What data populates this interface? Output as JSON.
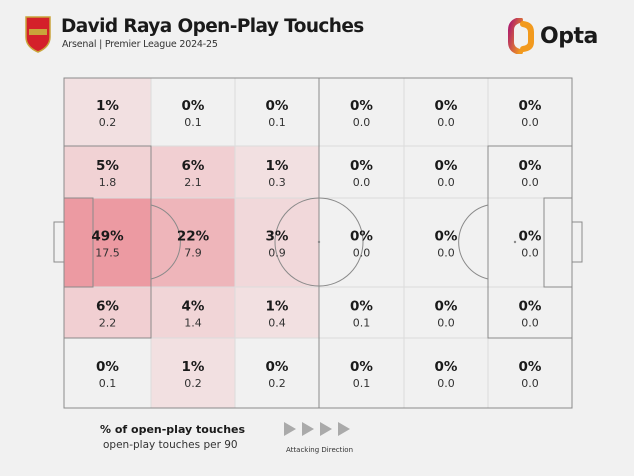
{
  "header": {
    "title": "David Raya Open-Play Touches",
    "subtitle": "Arsenal | Premier League 2024-25",
    "crest_text": "Arsenal",
    "brand": "Opta"
  },
  "colors": {
    "background": "#f1f1f1",
    "heat_max": "#ec9aa2",
    "heat_min": "#f3ecec",
    "lines": "#888888"
  },
  "chart_data": {
    "type": "heatmap",
    "title": "David Raya Open-Play Touches",
    "grid": "6 columns x 5 rows over pitch",
    "rows": [
      [
        {
          "pct": "1%",
          "per90": "0.2"
        },
        {
          "pct": "0%",
          "per90": "0.1"
        },
        {
          "pct": "0%",
          "per90": "0.1"
        },
        {
          "pct": "0%",
          "per90": "0.0"
        },
        {
          "pct": "0%",
          "per90": "0.0"
        },
        {
          "pct": "0%",
          "per90": "0.0"
        }
      ],
      [
        {
          "pct": "5%",
          "per90": "1.8"
        },
        {
          "pct": "6%",
          "per90": "2.1"
        },
        {
          "pct": "1%",
          "per90": "0.3"
        },
        {
          "pct": "0%",
          "per90": "0.0"
        },
        {
          "pct": "0%",
          "per90": "0.0"
        },
        {
          "pct": "0%",
          "per90": "0.0"
        }
      ],
      [
        {
          "pct": "49%",
          "per90": "17.5"
        },
        {
          "pct": "22%",
          "per90": "7.9"
        },
        {
          "pct": "3%",
          "per90": "0.9"
        },
        {
          "pct": "0%",
          "per90": "0.0"
        },
        {
          "pct": "0%",
          "per90": "0.0"
        },
        {
          "pct": "0%",
          "per90": "0.0"
        }
      ],
      [
        {
          "pct": "6%",
          "per90": "2.2"
        },
        {
          "pct": "4%",
          "per90": "1.4"
        },
        {
          "pct": "1%",
          "per90": "0.4"
        },
        {
          "pct": "0%",
          "per90": "0.1"
        },
        {
          "pct": "0%",
          "per90": "0.0"
        },
        {
          "pct": "0%",
          "per90": "0.0"
        }
      ],
      [
        {
          "pct": "0%",
          "per90": "0.1"
        },
        {
          "pct": "1%",
          "per90": "0.2"
        },
        {
          "pct": "0%",
          "per90": "0.2"
        },
        {
          "pct": "0%",
          "per90": "0.1"
        },
        {
          "pct": "0%",
          "per90": "0.0"
        },
        {
          "pct": "0%",
          "per90": "0.0"
        }
      ]
    ]
  },
  "legend": {
    "pct_label": "% of open-play touches",
    "value_label": "open-play touches per 90",
    "direction_label": "Attacking Direction"
  }
}
